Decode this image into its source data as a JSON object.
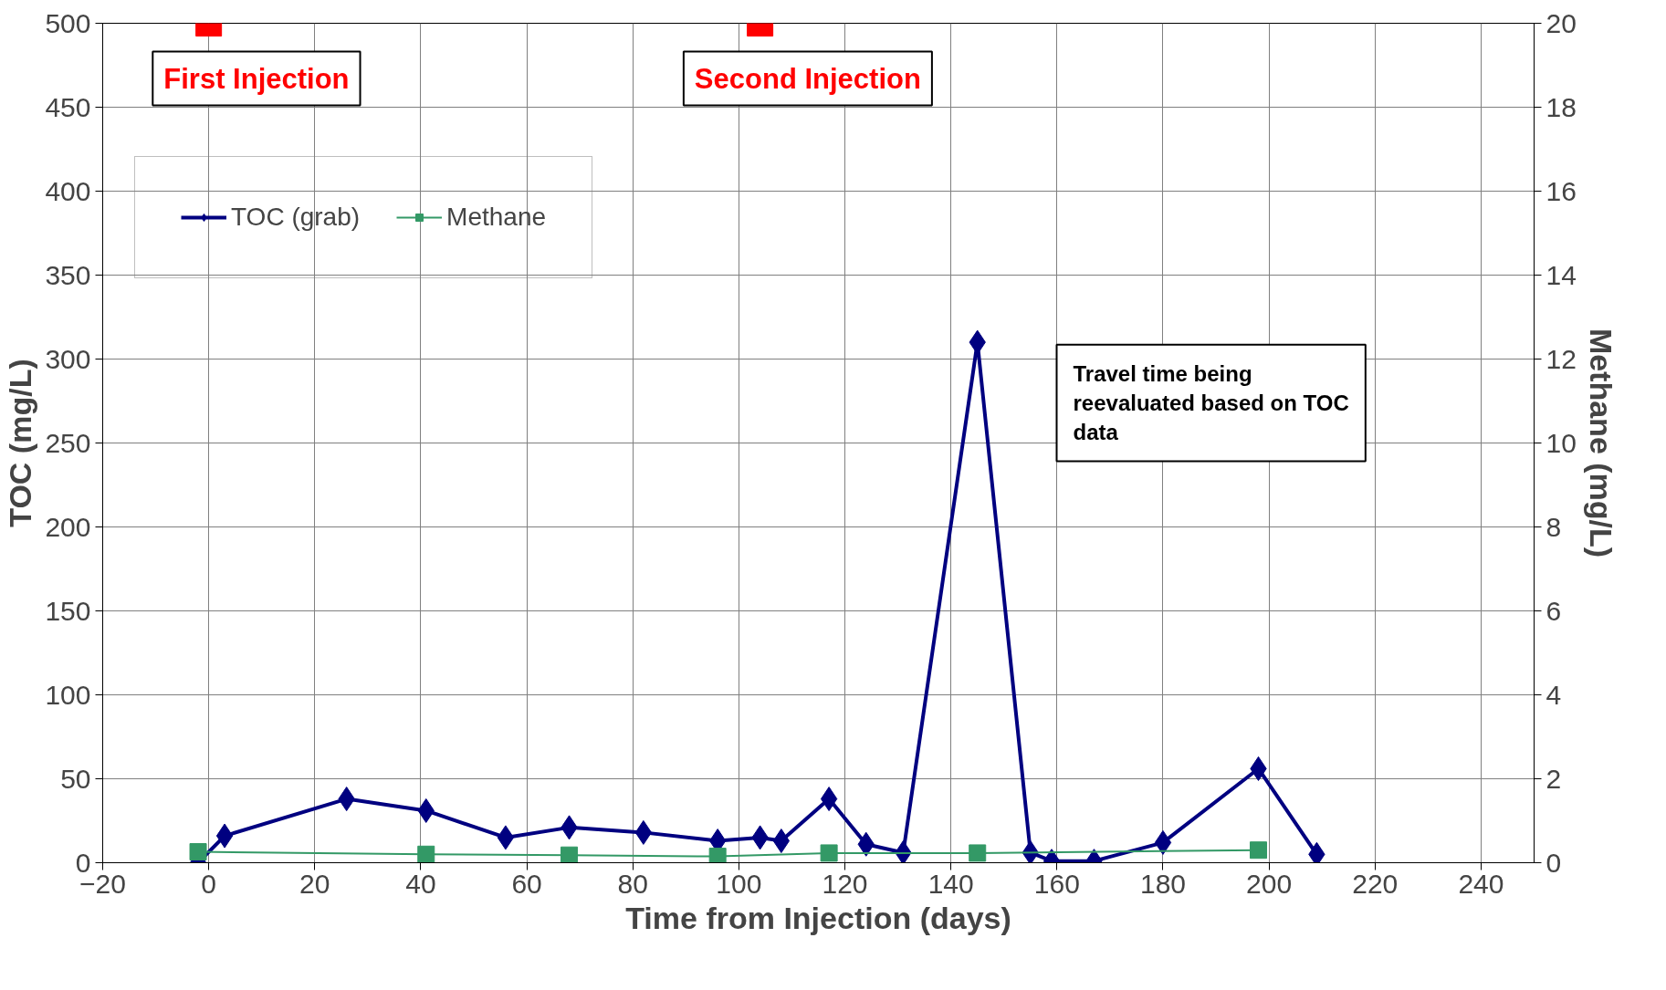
{
  "chart_data": {
    "type": "line",
    "xlabel": "Time from Injection (days)",
    "ylabel": "TOC (mg/L)",
    "y2label": "Methane (mg/L)",
    "xlim": [
      -20,
      250
    ],
    "xticks": [
      -20,
      0,
      20,
      40,
      60,
      80,
      100,
      120,
      140,
      160,
      180,
      200,
      220,
      240
    ],
    "ylim": [
      0,
      500
    ],
    "yticks": [
      0,
      50,
      100,
      150,
      200,
      250,
      300,
      350,
      400,
      450,
      500
    ],
    "y2lim": [
      0,
      20
    ],
    "y2ticks": [
      0,
      2,
      4,
      6,
      8,
      10,
      12,
      14,
      16,
      18,
      20
    ],
    "grid": true,
    "legend": "top left",
    "series": [
      {
        "name": "TOC (grab)",
        "color": "#000080",
        "marker": "diamond",
        "x": [
          -2,
          3,
          26,
          41,
          56,
          68,
          82,
          96,
          104,
          108,
          117,
          124,
          131,
          145,
          155,
          159,
          167,
          180,
          198,
          209
        ],
        "values": [
          0,
          16,
          38,
          31,
          15,
          21,
          18,
          13,
          15,
          13,
          38,
          11,
          6,
          310,
          6,
          1,
          1,
          12,
          56,
          5
        ]
      },
      {
        "name": "Methane",
        "color": "#339966",
        "marker": "square",
        "axis": "y2",
        "x": [
          -2,
          41,
          68,
          96,
          117,
          145,
          198
        ],
        "values": [
          0.26,
          0.2,
          0.18,
          0.15,
          0.23,
          0.23,
          0.3
        ]
      },
      {
        "color": "#ff0000",
        "type": "scatter",
        "marker": "square",
        "x": [
          0,
          104
        ],
        "values": [
          500,
          500
        ]
      }
    ],
    "annotations": [
      {
        "text": "First Injection",
        "x": 0,
        "y": 500
      },
      {
        "text": "Second Injection",
        "x": 104,
        "y": 500
      },
      "Travel time being reevaluated based on TOC data"
    ]
  }
}
